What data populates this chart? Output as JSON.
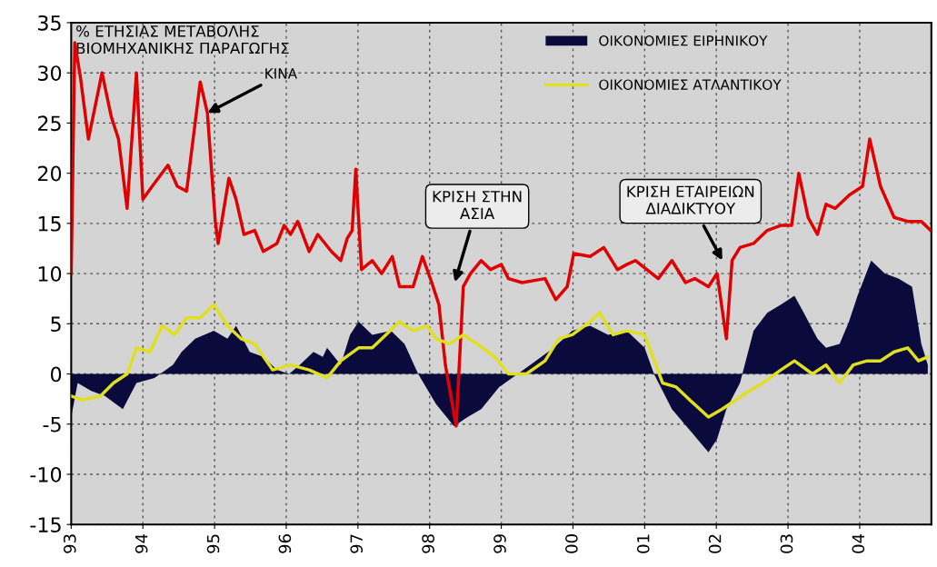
{
  "chart_data": {
    "type": "line",
    "title": "% ΕΤΗΣΙΑΣ ΜΕΤΑΒΟΛΗΣ\nΒΙΟΜΗΧΑΝΙΚΗΣ ΠΑΡΑΓΩΓΗΣ",
    "xlim": [
      1993,
      2005
    ],
    "xticks": [
      {
        "value": 1993,
        "label": "93"
      },
      {
        "value": 1994,
        "label": "94"
      },
      {
        "value": 1995,
        "label": "95"
      },
      {
        "value": 1996,
        "label": "96"
      },
      {
        "value": 1997,
        "label": "97"
      },
      {
        "value": 1998,
        "label": "98"
      },
      {
        "value": 1999,
        "label": "99"
      },
      {
        "value": 2000,
        "label": "00"
      },
      {
        "value": 2001,
        "label": "01"
      },
      {
        "value": 2002,
        "label": "02"
      },
      {
        "value": 2003,
        "label": "03"
      },
      {
        "value": 2004,
        "label": "04"
      }
    ],
    "ylim": [
      -15,
      35
    ],
    "yticks": [
      -15,
      -10,
      -5,
      0,
      5,
      10,
      15,
      20,
      25,
      30,
      35
    ],
    "grid": true,
    "legend": "top right",
    "series": [
      {
        "name": "ΟΙΚΟΝΟΜΙΕΣ ΕΙΡΗΝΙΚΟΥ",
        "type": "area",
        "color": "#0a0a3c",
        "x": [
          1993.0,
          1993.09,
          1993.28,
          1993.47,
          1993.72,
          1993.91,
          1994.16,
          1994.42,
          1994.54,
          1994.73,
          1994.99,
          1995.18,
          1995.3,
          1995.49,
          1995.68,
          1995.87,
          1996.04,
          1996.19,
          1996.38,
          1996.51,
          1996.57,
          1996.76,
          1996.89,
          1997.01,
          1997.2,
          1997.46,
          1997.65,
          1997.84,
          1998.09,
          1998.34,
          1998.53,
          1998.72,
          1998.97,
          1999.23,
          1999.48,
          1999.73,
          1999.99,
          2000.24,
          2000.49,
          2000.75,
          2001.0,
          2001.13,
          2001.38,
          2001.63,
          2001.89,
          2002.01,
          2002.14,
          2002.33,
          2002.52,
          2002.71,
          2002.9,
          2003.09,
          2003.22,
          2003.41,
          2003.53,
          2003.72,
          2003.85,
          2003.97,
          2004.16,
          2004.35,
          2004.54,
          2004.73,
          2004.86,
          2004.95
        ],
        "values": [
          -4.3,
          -0.9,
          -1.7,
          -2.2,
          -3.5,
          -0.9,
          -0.4,
          0.9,
          2.2,
          3.5,
          4.3,
          3.5,
          4.8,
          2.2,
          1.7,
          0.4,
          0,
          0.9,
          2.2,
          1.7,
          2.6,
          0.9,
          3.9,
          5.2,
          3.9,
          4.3,
          3,
          0,
          -3,
          -5.2,
          -4.3,
          -3.5,
          -1.3,
          0,
          1.3,
          2.6,
          4.3,
          4.8,
          3.9,
          4.3,
          2.6,
          0,
          -3.5,
          -5.6,
          -7.8,
          -6.5,
          -3.5,
          -0.9,
          4.3,
          6.1,
          6.9,
          7.8,
          6.1,
          3.5,
          2.6,
          3,
          5.2,
          7.8,
          11.3,
          10,
          9.5,
          8.7,
          3,
          0.9
        ]
      },
      {
        "color": "#e00000",
        "x": [
          1993.0,
          1993.05,
          1993.13,
          1993.24,
          1993.43,
          1993.56,
          1993.66,
          1993.78,
          1993.91,
          1994.0,
          1994.13,
          1994.35,
          1994.48,
          1994.61,
          1994.8,
          1994.9,
          1995.01,
          1995.05,
          1995.2,
          1995.3,
          1995.41,
          1995.56,
          1995.68,
          1995.87,
          1995.97,
          1996.06,
          1996.16,
          1996.32,
          1996.44,
          1996.63,
          1996.76,
          1996.85,
          1996.92,
          1996.97,
          1997.05,
          1997.2,
          1997.33,
          1997.48,
          1997.58,
          1997.77,
          1997.9,
          1998.03,
          1998.13,
          1998.22,
          1998.37,
          1998.47,
          1998.57,
          1998.72,
          1998.85,
          1999.0,
          1999.1,
          1999.29,
          1999.61,
          1999.76,
          1999.92,
          2000.01,
          2000.24,
          2000.43,
          2000.62,
          2000.75,
          2000.87,
          2001.03,
          2001.19,
          2001.38,
          2001.57,
          2001.7,
          2001.89,
          2002.01,
          2002.14,
          2002.22,
          2002.33,
          2002.52,
          2002.71,
          2002.9,
          2003.05,
          2003.15,
          2003.28,
          2003.41,
          2003.53,
          2003.66,
          2003.85,
          2004.04,
          2004.14,
          2004.29,
          2004.48,
          2004.67,
          2004.86,
          2004.99
        ],
        "values": [
          10,
          33,
          29.5,
          23.4,
          30,
          25.6,
          23.4,
          16.5,
          30,
          17.4,
          18.7,
          20.8,
          18.7,
          18.2,
          29.1,
          26,
          15.2,
          13,
          19.5,
          17.4,
          13.9,
          14.3,
          12.2,
          13,
          14.8,
          13.9,
          15.2,
          12.2,
          13.9,
          12.2,
          11.3,
          13.5,
          14.3,
          20.4,
          10.4,
          11.3,
          10,
          11.7,
          8.7,
          8.7,
          11.7,
          9.1,
          6.9,
          0.9,
          -5.2,
          8.7,
          10,
          11.3,
          10.4,
          10.9,
          9.5,
          9.1,
          9.5,
          7.4,
          8.7,
          12,
          11.7,
          12.6,
          10.4,
          10.9,
          11.3,
          10.4,
          9.5,
          11.3,
          9.1,
          9.5,
          8.7,
          10,
          3.5,
          11.3,
          12.6,
          13,
          14.3,
          14.8,
          14.8,
          20,
          15.6,
          13.9,
          16.9,
          16.5,
          17.8,
          18.7,
          23.4,
          18.7,
          15.6,
          15.2,
          15.2,
          14.3
        ]
      },
      {
        "name": "ΟΙΚΟΝΟΜΙΕΣ ΑΤΛΑΝΤΙΚΟΥ",
        "color": "#e0e020",
        "x": [
          1993.0,
          1993.15,
          1993.41,
          1993.59,
          1993.78,
          1993.91,
          1994.1,
          1994.27,
          1994.44,
          1994.61,
          1994.8,
          1994.99,
          1995.18,
          1995.37,
          1995.56,
          1995.81,
          1996.06,
          1996.32,
          1996.57,
          1996.76,
          1997.01,
          1997.2,
          1997.39,
          1997.58,
          1997.77,
          1997.96,
          1998.09,
          1998.28,
          1998.47,
          1998.66,
          1998.91,
          1999.1,
          1999.35,
          1999.61,
          1999.8,
          1999.99,
          2000.24,
          2000.37,
          2000.56,
          2000.75,
          2001.0,
          2001.25,
          2001.44,
          2001.63,
          2001.89,
          2002.08,
          2002.27,
          2002.46,
          2002.65,
          2002.9,
          2003.09,
          2003.34,
          2003.53,
          2003.72,
          2003.91,
          2004.1,
          2004.29,
          2004.48,
          2004.67,
          2004.82,
          2004.95
        ],
        "values": [
          -2.2,
          -2.6,
          -2.2,
          -0.9,
          0,
          2.6,
          2.2,
          4.8,
          3.9,
          5.6,
          5.6,
          6.9,
          4.8,
          3.5,
          3,
          0.4,
          0.9,
          0.4,
          -0.4,
          1.3,
          2.6,
          2.6,
          3.9,
          5.2,
          4.3,
          4.8,
          3.5,
          3,
          3.9,
          3,
          1.7,
          0,
          0,
          1.3,
          3.5,
          3.9,
          5.2,
          6.1,
          3.9,
          4.3,
          3.9,
          -0.9,
          -1.3,
          -2.6,
          -4.3,
          -3.5,
          -2.6,
          -1.7,
          -0.9,
          0.4,
          1.3,
          0,
          0.9,
          -0.9,
          0.9,
          1.3,
          1.3,
          2.2,
          2.6,
          1.3,
          1.7
        ]
      }
    ],
    "annotations": [
      {
        "text": "ΚΙΝΑ",
        "x": 1994.9,
        "y": 26
      },
      "ΚΡΙΣΗ ΣΤΗΝ\nΑΣΙΑ",
      "ΚΡΙΣΗ ΕΤΑΙΡΕΙΩΝ\nΔΙΑΔΙΚΤΥΟΥ"
    ]
  }
}
